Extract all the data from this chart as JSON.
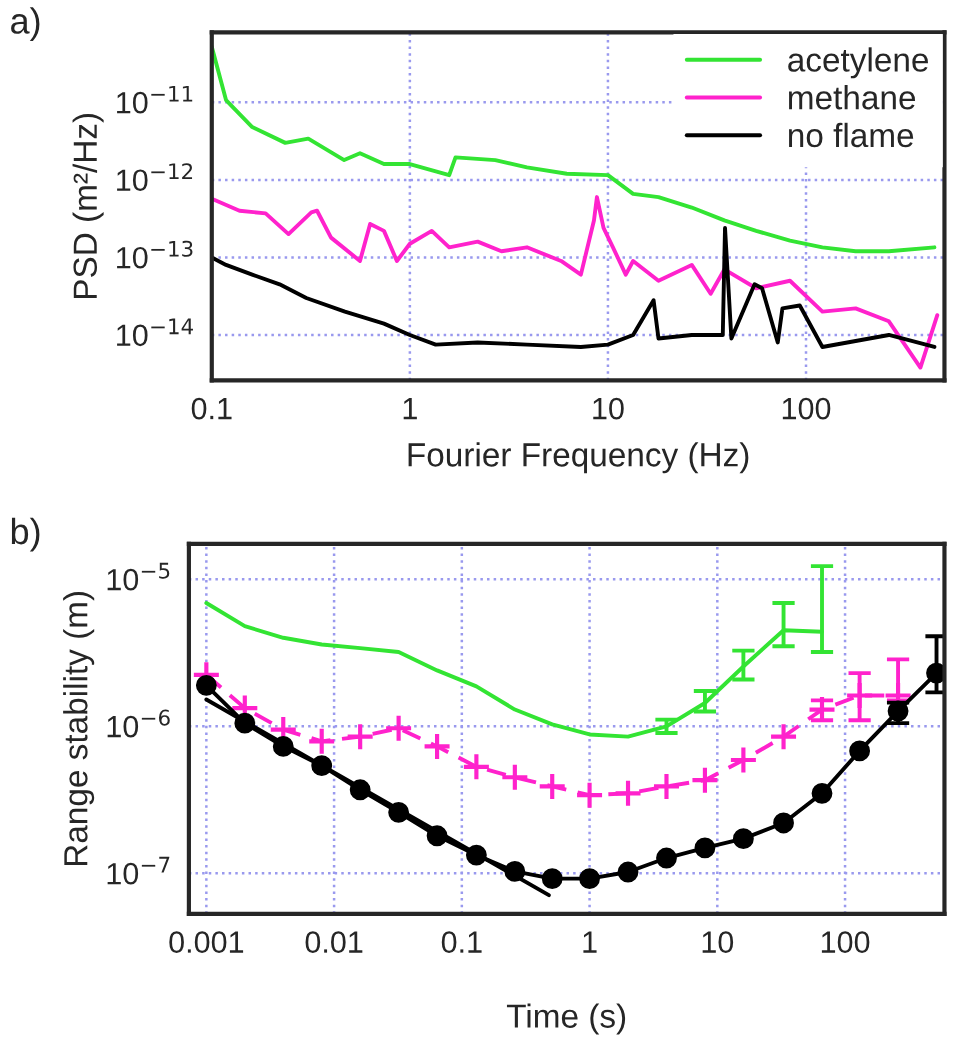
{
  "chart_data": [
    {
      "type": "line",
      "xlabel": "Fourier Frequency (Hz)",
      "ylabel": "PSD (m²/Hz)",
      "annotations": [
        "a)"
      ],
      "log": "xy",
      "grid": true,
      "legend": "top right",
      "xlim": [
        0.1,
        500
      ],
      "ylim": [
        2.6e-15,
        8e-11
      ],
      "xticks": [
        0.1,
        1,
        10,
        100
      ],
      "yticks": [
        {
          "value": 1e-14,
          "label": "10$^{−14}$"
        },
        {
          "value": 1e-13,
          "label": "10$^{−13}$"
        },
        {
          "value": 1e-12,
          "label": "10$^{−12}$"
        },
        {
          "value": 1e-11,
          "label": "10$^{−11}$"
        }
      ],
      "series": [
        {
          "name": "acetylene",
          "color": "#33e433",
          "x": [
            0.1,
            0.118,
            0.16,
            0.235,
            0.307,
            0.466,
            0.56,
            0.74,
            1,
            1.58,
            1.7,
            2.7,
            3.9,
            6.2,
            10,
            13.4,
            18,
            26.5,
            38.7,
            56,
            83,
            121,
            178,
            262,
            445
          ],
          "values": [
            5.2e-11,
            1.07e-11,
            4.8e-12,
            3e-12,
            3.4e-12,
            1.8e-12,
            2.2e-12,
            1.6e-12,
            1.6e-12,
            1.15e-12,
            1.95e-12,
            1.8e-12,
            1.45e-12,
            1.2e-12,
            1.15e-12,
            6.6e-13,
            6e-13,
            4.4e-13,
            3e-13,
            2.2e-13,
            1.65e-13,
            1.35e-13,
            1.2e-13,
            1.2e-13,
            1.35e-13
          ]
        },
        {
          "name": "methane",
          "color": "#ff22cc",
          "x": [
            0.1,
            0.138,
            0.187,
            0.244,
            0.318,
            0.34,
            0.4,
            0.56,
            0.63,
            0.74,
            0.86,
            1,
            1.29,
            1.58,
            2.2,
            2.9,
            3.9,
            5.8,
            7.3,
            8.5,
            8.8,
            9.5,
            10.6,
            12.3,
            13.4,
            18,
            26.5,
            33,
            38.7,
            56,
            83,
            121,
            178,
            262,
            378,
            460
          ],
          "values": [
            5.7e-13,
            4e-13,
            3.7e-13,
            2e-13,
            3.8e-13,
            4e-13,
            1.8e-13,
            9e-14,
            2.7e-13,
            2.2e-13,
            9e-14,
            1.5e-13,
            2.2e-13,
            1.35e-13,
            1.6e-13,
            1.2e-13,
            1.35e-13,
            9e-14,
            6e-14,
            3e-13,
            6e-13,
            2.4e-13,
            1.35e-13,
            6e-14,
            9e-14,
            5e-14,
            8e-14,
            3.4e-14,
            7e-14,
            4e-14,
            5e-14,
            2e-14,
            2.2e-14,
            1.5e-14,
            3.8e-15,
            1.8e-14
          ]
        },
        {
          "name": "no flame",
          "color": "#000000",
          "x": [
            0.1,
            0.118,
            0.16,
            0.22,
            0.3,
            0.47,
            0.74,
            1,
            1.35,
            2.2,
            3.9,
            7.3,
            10,
            13.4,
            17,
            18,
            26.5,
            38,
            39,
            42,
            55,
            60,
            72,
            76,
            93,
            121,
            262,
            445
          ],
          "values": [
            1e-13,
            8e-14,
            6e-14,
            4.5e-14,
            3e-14,
            2e-14,
            1.4e-14,
            1e-14,
            7.5e-15,
            8e-15,
            7.5e-15,
            7e-15,
            7.5e-15,
            1e-14,
            2.8e-14,
            9e-15,
            1e-14,
            1e-14,
            2.4e-13,
            9e-15,
            4.5e-14,
            4e-14,
            8e-15,
            2.2e-14,
            2.4e-14,
            7e-15,
            1e-14,
            7e-15
          ]
        }
      ]
    },
    {
      "type": "line",
      "xlabel": "Time (s)",
      "ylabel": "Range stability (m)",
      "annotations": [
        "b)"
      ],
      "log": "xy",
      "grid": true,
      "xlim": [
        0.00073,
        600
      ],
      "ylim": [
        5.3e-08,
        1.74e-05
      ],
      "xticks": [
        0.001,
        0.01,
        0.1,
        1,
        10,
        100
      ],
      "yticks": [
        {
          "value": 1e-07,
          "label": "10$^{−7}$"
        },
        {
          "value": 1e-06,
          "label": "10$^{−6}$"
        },
        {
          "value": 1e-05,
          "label": "10$^{−5}$"
        }
      ],
      "series": [
        {
          "color": "#33e433",
          "marker": "none",
          "line_style": "solid",
          "x": [
            0.001,
            0.002,
            0.004,
            0.008,
            0.016,
            0.032,
            0.064,
            0.13,
            0.26,
            0.51,
            1,
            2,
            4,
            8,
            16,
            33,
            66
          ],
          "values": [
            6.9e-06,
            4.8e-06,
            4e-06,
            3.6e-06,
            3.4e-06,
            3.2e-06,
            2.4e-06,
            1.87e-06,
            1.3e-06,
            1.03e-06,
            8.8e-07,
            8.5e-07,
            1e-06,
            1.44e-06,
            2.55e-06,
            4.5e-06,
            4.4e-06
          ],
          "errors": [
            null,
            null,
            null,
            null,
            null,
            null,
            null,
            null,
            null,
            null,
            null,
            null,
            [
              9e-07,
              1.11e-06
            ],
            [
              1.26e-06,
              1.74e-06
            ],
            [
              2.08e-06,
              3.27e-06
            ],
            [
              3.5e-06,
              6.9e-06
            ],
            [
              3.2e-06,
              1.23e-05
            ]
          ]
        },
        {
          "color": "#ff22cc",
          "marker": "cross",
          "line_style": "dashed",
          "x": [
            0.001,
            0.002,
            0.004,
            0.008,
            0.016,
            0.032,
            0.064,
            0.13,
            0.26,
            0.51,
            1,
            2,
            4,
            8,
            16,
            33,
            66,
            130,
            260
          ],
          "values": [
            2.24e-06,
            1.33e-06,
            9.5e-07,
            7.9e-07,
            8.5e-07,
            9.7e-07,
            7.3e-07,
            5.3e-07,
            4.5e-07,
            3.9e-07,
            3.4e-07,
            3.5e-07,
            3.9e-07,
            4.3e-07,
            5.9e-07,
            8.5e-07,
            1.3e-06,
            1.62e-06,
            1.62e-06
          ],
          "errors": [
            null,
            null,
            null,
            null,
            null,
            null,
            null,
            null,
            null,
            null,
            null,
            null,
            null,
            null,
            null,
            null,
            [
              1.1e-06,
              1.5e-06
            ],
            [
              1.1e-06,
              2.3e-06
            ],
            [
              1.5e-06,
              2.85e-06
            ]
          ]
        },
        {
          "color": "#000000",
          "marker": "circle",
          "line_style": "solid",
          "x": [
            0.001,
            0.002,
            0.004,
            0.008,
            0.016,
            0.032,
            0.064,
            0.13,
            0.26,
            0.51,
            1,
            2,
            4,
            8,
            16,
            33,
            66,
            130,
            260,
            520
          ],
          "values": [
            1.9e-06,
            1.05e-06,
            7.3e-07,
            5.4e-07,
            3.7e-07,
            2.6e-07,
            1.8e-07,
            1.33e-07,
            1.03e-07,
            9.2e-08,
            9.2e-08,
            1.02e-07,
            1.27e-07,
            1.49e-07,
            1.72e-07,
            2.2e-07,
            3.5e-07,
            6.8e-07,
            1.27e-06,
            2.3e-06
          ],
          "errors": [
            null,
            null,
            null,
            null,
            null,
            null,
            null,
            null,
            null,
            null,
            null,
            null,
            null,
            null,
            null,
            null,
            null,
            null,
            [
              1.05e-06,
              1.45e-06
            ],
            [
              1.7e-06,
              4.1e-06
            ]
          ]
        },
        {
          "type": "line",
          "color": "#000000",
          "marker": "none",
          "line_style": "solid",
          "x": [
            0.001,
            0.48
          ],
          "values": [
            1.52e-06,
            7.1e-08
          ]
        }
      ]
    }
  ]
}
